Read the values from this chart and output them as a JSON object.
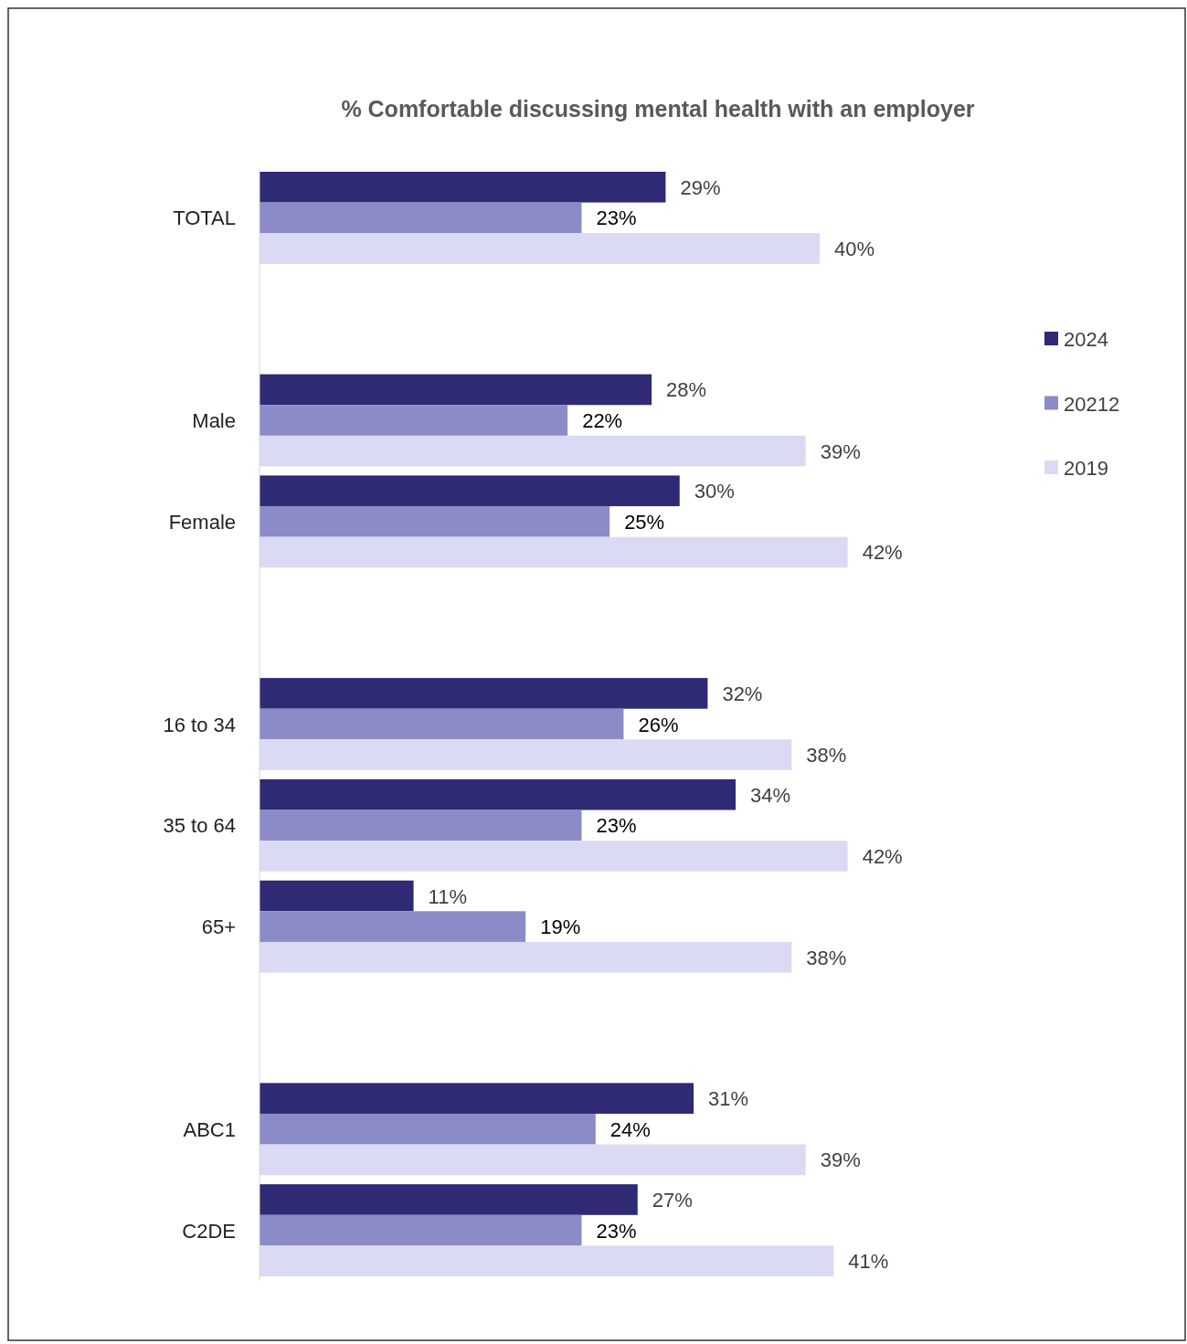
{
  "chart_data": {
    "type": "bar",
    "orientation": "horizontal",
    "title": "% Comfortable discussing mental health with an employer",
    "categories": [
      "TOTAL",
      null,
      "Male",
      "Female",
      null,
      "16 to 34",
      "35 to 64",
      "65+",
      null,
      "ABC1",
      "C2DE"
    ],
    "series": [
      {
        "name": "2024",
        "color": "#2e2a74",
        "values": [
          29,
          null,
          28,
          30,
          null,
          32,
          34,
          11,
          null,
          31,
          27
        ],
        "value_labels": [
          "29%",
          null,
          "28%",
          "30%",
          null,
          "32%",
          "34%",
          "11%",
          null,
          "31%",
          "27%"
        ]
      },
      {
        "name": "20212",
        "color": "#8b8bc8",
        "values": [
          23,
          null,
          22,
          25,
          null,
          26,
          23,
          19,
          null,
          24,
          23
        ],
        "value_labels": [
          "23%",
          null,
          "22%",
          "25%",
          null,
          "26%",
          "23%",
          "19%",
          null,
          "24%",
          "23%"
        ]
      },
      {
        "name": "2019",
        "color": "#dadaf4",
        "values": [
          40,
          null,
          39,
          42,
          null,
          38,
          42,
          38,
          null,
          39,
          41
        ],
        "value_labels": [
          "40%",
          null,
          "39%",
          "42%",
          null,
          "38%",
          "42%",
          "38%",
          null,
          "39%",
          "41%"
        ]
      }
    ],
    "legend": "right"
  }
}
